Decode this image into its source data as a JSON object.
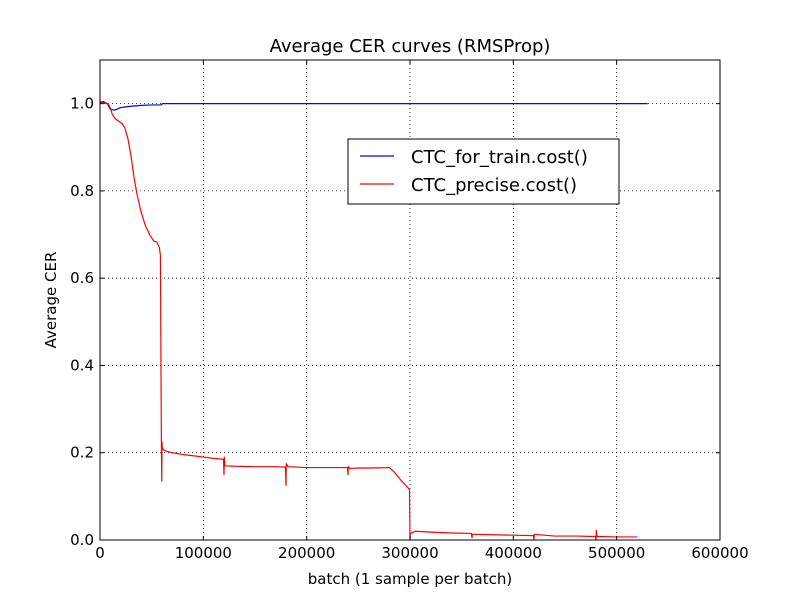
{
  "chart_data": {
    "type": "line",
    "title": "Average CER curves (RMSProp)",
    "xlabel": "batch (1 sample per batch)",
    "ylabel": "Average CER",
    "xlim": [
      0,
      600000
    ],
    "ylim": [
      0,
      1.1
    ],
    "x_ticks": [
      0,
      100000,
      200000,
      300000,
      400000,
      500000,
      600000
    ],
    "x_tick_labels": [
      "0",
      "100000",
      "200000",
      "300000",
      "400000",
      "500000",
      "600000"
    ],
    "y_ticks": [
      0.0,
      0.2,
      0.4,
      0.6,
      0.8,
      1.0
    ],
    "y_tick_labels": [
      "0.0",
      "0.2",
      "0.4",
      "0.6",
      "0.8",
      "1.0"
    ],
    "grid": true,
    "legend_position": "upper-center-right",
    "series": [
      {
        "name": "CTC_for_train.cost()",
        "color": "#0000ff",
        "points": [
          [
            0,
            1.0
          ],
          [
            3000,
            1.005
          ],
          [
            7000,
            1.0
          ],
          [
            10000,
            0.987
          ],
          [
            14000,
            0.985
          ],
          [
            20000,
            0.991
          ],
          [
            30000,
            0.994
          ],
          [
            40000,
            0.996
          ],
          [
            50000,
            0.997
          ],
          [
            59000,
            0.997
          ],
          [
            60500,
            1.0
          ],
          [
            100000,
            1.0
          ],
          [
            200000,
            1.0
          ],
          [
            300000,
            1.0
          ],
          [
            400000,
            1.0
          ],
          [
            500000,
            1.0
          ],
          [
            530000,
            1.0
          ]
        ]
      },
      {
        "name": "CTC_precise.cost()",
        "color": "#ff0000",
        "points": [
          [
            0,
            1.005
          ],
          [
            4000,
            1.002
          ],
          [
            8000,
            0.999
          ],
          [
            10000,
            0.99
          ],
          [
            12000,
            0.975
          ],
          [
            15000,
            0.965
          ],
          [
            18000,
            0.96
          ],
          [
            21000,
            0.955
          ],
          [
            24000,
            0.945
          ],
          [
            27000,
            0.92
          ],
          [
            30000,
            0.88
          ],
          [
            33000,
            0.83
          ],
          [
            36000,
            0.79
          ],
          [
            40000,
            0.75
          ],
          [
            44000,
            0.72
          ],
          [
            48000,
            0.7
          ],
          [
            52000,
            0.685
          ],
          [
            55000,
            0.683
          ],
          [
            56500,
            0.675
          ],
          [
            57500,
            0.67
          ],
          [
            58000,
            0.66
          ],
          [
            58500,
            0.652
          ],
          [
            59000,
            0.4
          ],
          [
            59500,
            0.2
          ],
          [
            59800,
            0.135
          ],
          [
            60000,
            0.225
          ],
          [
            60300,
            0.21
          ],
          [
            62000,
            0.206
          ],
          [
            65000,
            0.203
          ],
          [
            70000,
            0.2
          ],
          [
            80000,
            0.196
          ],
          [
            90000,
            0.193
          ],
          [
            100000,
            0.19
          ],
          [
            110000,
            0.187
          ],
          [
            119500,
            0.185
          ],
          [
            120000,
            0.15
          ],
          [
            120300,
            0.19
          ],
          [
            121000,
            0.17
          ],
          [
            130000,
            0.169
          ],
          [
            150000,
            0.168
          ],
          [
            170000,
            0.168
          ],
          [
            179500,
            0.167
          ],
          [
            180000,
            0.125
          ],
          [
            180300,
            0.175
          ],
          [
            182000,
            0.168
          ],
          [
            200000,
            0.166
          ],
          [
            220000,
            0.166
          ],
          [
            239500,
            0.166
          ],
          [
            240000,
            0.15
          ],
          [
            240300,
            0.168
          ],
          [
            242000,
            0.164
          ],
          [
            250000,
            0.165
          ],
          [
            260000,
            0.165
          ],
          [
            280000,
            0.166
          ],
          [
            285000,
            0.155
          ],
          [
            292000,
            0.135
          ],
          [
            298000,
            0.12
          ],
          [
            299500,
            0.115
          ],
          [
            300000,
            0.0
          ],
          [
            300300,
            0.015
          ],
          [
            305000,
            0.02
          ],
          [
            320000,
            0.018
          ],
          [
            340000,
            0.016
          ],
          [
            359500,
            0.015
          ],
          [
            360000,
            0.005
          ],
          [
            360300,
            0.013
          ],
          [
            380000,
            0.012
          ],
          [
            400000,
            0.011
          ],
          [
            419500,
            0.01
          ],
          [
            420000,
            0.0
          ],
          [
            420300,
            0.013
          ],
          [
            440000,
            0.009
          ],
          [
            460000,
            0.009
          ],
          [
            479500,
            0.008
          ],
          [
            480000,
            0.0
          ],
          [
            480300,
            0.022
          ],
          [
            481000,
            0.008
          ],
          [
            500000,
            0.007
          ],
          [
            520000,
            0.007
          ]
        ]
      }
    ]
  }
}
